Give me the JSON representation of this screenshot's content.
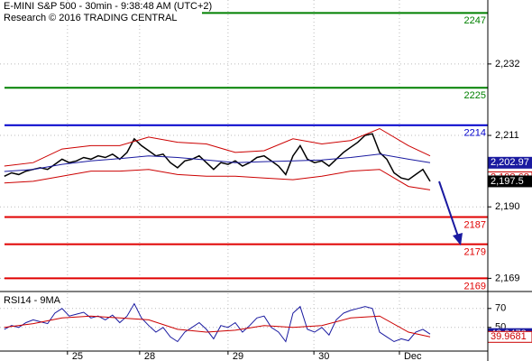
{
  "chart_data": [
    {
      "type": "line",
      "title": "E-MINI S&P 500 - 30min - 9:38:48 AM (UTC+2)",
      "subtitle": "Research © 2016 TRADING CENTRAL",
      "xlim": [
        -0.6,
        67
      ],
      "ylim": [
        2165.6,
        2250.8
      ],
      "yticks": [
        {
          "value": 2232,
          "label": "2,232"
        },
        {
          "value": 2211,
          "label": "2,211"
        },
        {
          "value": 2190,
          "label": "2,190"
        },
        {
          "value": 2169,
          "label": "2,169"
        }
      ],
      "grid": true,
      "series": [
        {
          "color": "#000000",
          "values": [
            2199,
            2200,
            2199.5,
            2200.5,
            2201,
            2201.5,
            2201,
            2202.5,
            2204,
            2203,
            2203.5,
            2204.5,
            2204,
            2205,
            2204.5,
            2205.5,
            2204,
            2206,
            2210,
            2208,
            2206.5,
            2205,
            2205.5,
            2203,
            2201.5,
            2203.5,
            2204,
            2205,
            2203,
            2201,
            2203,
            2202.5,
            2203.5,
            2202,
            2203,
            2204.5,
            2205,
            2203.5,
            2202,
            2199.5,
            2205,
            2208,
            2204,
            2203,
            2203.5,
            2202,
            2204,
            2206,
            2207.5,
            2209,
            2211,
            2211.5,
            2206,
            2204,
            2200,
            2198.5,
            2198,
            2199.5,
            2201,
            2197.5
          ]
        },
        {
          "color": "#1a1aa0",
          "x": [
            0,
            4,
            8,
            12,
            16,
            20,
            24,
            28,
            32,
            36,
            40,
            44,
            48,
            52,
            56,
            59
          ],
          "values": [
            2200.4,
            2201,
            2202.5,
            2203.5,
            2204.2,
            2205,
            2204.5,
            2203.8,
            2203,
            2203.3,
            2203.5,
            2203.8,
            2204.5,
            2205.5,
            2204,
            2202.97
          ]
        },
        {
          "color": "#cc0000",
          "x": [
            0,
            4,
            8,
            12,
            16,
            20,
            24,
            28,
            32,
            36,
            40,
            44,
            48,
            52,
            56,
            59
          ],
          "values": [
            2202,
            2203,
            2207,
            2208,
            2208,
            2210.5,
            2209,
            2208.5,
            2206,
            2206.5,
            2210,
            2208.5,
            2209.5,
            2213,
            2208,
            2205
          ]
        },
        {
          "color": "#cc0000",
          "x": [
            0,
            4,
            8,
            12,
            16,
            20,
            24,
            28,
            32,
            36,
            40,
            44,
            48,
            52,
            56,
            59
          ],
          "values": [
            2197,
            2197.5,
            2199,
            2200.5,
            2200.5,
            2201,
            2199.5,
            2199,
            2199,
            2198.5,
            2198,
            2199,
            2200.5,
            2201,
            2196,
            2195
          ]
        }
      ],
      "levels": [
        {
          "value": 2247,
          "color": "#008000"
        },
        {
          "value": 2225,
          "color": "#008000"
        },
        {
          "value": 2214,
          "color": "#0000cc"
        },
        {
          "value": 2187,
          "color": "#e00000"
        },
        {
          "value": 2179,
          "color": "#e00000"
        },
        {
          "value": 2169,
          "color": "#e00000"
        }
      ],
      "price_tags": [
        {
          "value": 2202.97,
          "label": "2,202.97",
          "color": "#1a1aa0"
        },
        {
          "value": 2198.68,
          "label": "2,198.68",
          "color": "#cc0000"
        },
        {
          "value": 2197.5,
          "label": "2,197.5",
          "color": "#000000"
        }
      ]
    },
    {
      "type": "line",
      "title": "RSI14 - 9MA",
      "xlim": [
        -0.6,
        67
      ],
      "ylim": [
        25,
        86
      ],
      "yticks": [
        70,
        50
      ],
      "xticks": [
        {
          "value": 8.75,
          "label": "25"
        },
        {
          "value": 18.75,
          "label": "28"
        },
        {
          "value": 31,
          "label": "29"
        },
        {
          "value": 42.9,
          "label": "30"
        },
        {
          "value": 54.75,
          "label": "Dec"
        }
      ],
      "grid": true,
      "series": [
        {
          "color": "#1a1aa0",
          "values": [
            48,
            52,
            50,
            55,
            58,
            56,
            54,
            65,
            70,
            62,
            64,
            66,
            60,
            62,
            58,
            63,
            55,
            62,
            75,
            60,
            52,
            45,
            50,
            40,
            35,
            45,
            50,
            55,
            48,
            38,
            52,
            50,
            55,
            45,
            52,
            60,
            62,
            50,
            45,
            35,
            65,
            72,
            48,
            45,
            50,
            42,
            58,
            65,
            68,
            70,
            72,
            70,
            45,
            40,
            35,
            38,
            36,
            45,
            48,
            42.9472
          ]
        },
        {
          "color": "#cc0000",
          "x": [
            0,
            4,
            8,
            12,
            16,
            20,
            24,
            28,
            32,
            36,
            40,
            44,
            48,
            52,
            56,
            59
          ],
          "values": [
            50,
            54,
            60,
            62,
            60,
            58,
            48,
            45,
            47,
            52,
            50,
            52,
            60,
            62,
            45,
            39.9681
          ]
        }
      ],
      "price_tags": [
        {
          "value": 42.9472,
          "label": "42.9472",
          "color": "#1a1aa0"
        },
        {
          "value": 39.9681,
          "label": "39.9681",
          "color": "#cc0000"
        }
      ]
    }
  ]
}
